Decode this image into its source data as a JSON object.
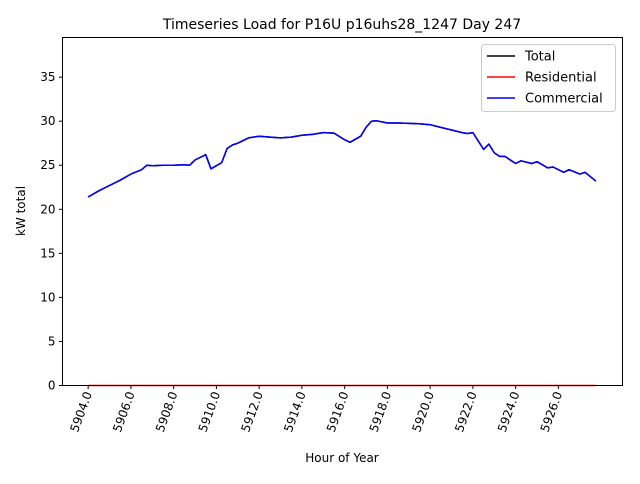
{
  "chart_data": {
    "type": "line",
    "title": "Timeseries Load for P16U p16uhs28_1247  Day 247",
    "xlabel": "Hour of Year",
    "ylabel": "kW total",
    "xlim": [
      5902.8,
      5929.0
    ],
    "ylim": [
      0,
      39.5
    ],
    "xticks": [
      5904,
      5906,
      5908,
      5910,
      5912,
      5914,
      5916,
      5918,
      5920,
      5922,
      5924,
      5926
    ],
    "xtick_labels": [
      "5904.0",
      "5906.0",
      "5908.0",
      "5910.0",
      "5912.0",
      "5914.0",
      "5916.0",
      "5918.0",
      "5920.0",
      "5922.0",
      "5924.0",
      "5926.0"
    ],
    "yticks": [
      0,
      5,
      10,
      15,
      20,
      25,
      30,
      35
    ],
    "ytick_labels": [
      "0",
      "5",
      "10",
      "15",
      "20",
      "25",
      "30",
      "35"
    ],
    "grid": false,
    "legend_position": "top-right",
    "x": [
      5904.0,
      5904.5,
      5905.0,
      5905.5,
      5906.0,
      5906.5,
      5906.75,
      5907.0,
      5907.5,
      5908.0,
      5908.5,
      5908.75,
      5909.0,
      5909.5,
      5909.75,
      5910.25,
      5910.5,
      5910.75,
      5911.0,
      5911.5,
      5912.0,
      5912.5,
      5913.0,
      5913.5,
      5914.0,
      5914.5,
      5915.0,
      5915.5,
      5916.0,
      5916.25,
      5916.75,
      5917.0,
      5917.25,
      5917.5,
      5918.0,
      5918.5,
      5919.0,
      5919.5,
      5920.0,
      5920.5,
      5921.0,
      5921.5,
      5921.75,
      5922.0,
      5922.5,
      5922.75,
      5923.0,
      5923.25,
      5923.5,
      5924.0,
      5924.25,
      5924.75,
      5925.0,
      5925.5,
      5925.75,
      5926.25,
      5926.5,
      5927.0,
      5927.25,
      5927.75
    ],
    "series": [
      {
        "name": "Total",
        "color": "#000000",
        "values": [
          21.4,
          22.1,
          22.7,
          23.3,
          24.0,
          24.5,
          25.0,
          24.95,
          25.0,
          25.0,
          25.05,
          25.0,
          25.6,
          26.2,
          24.6,
          25.3,
          26.9,
          27.3,
          27.5,
          28.1,
          28.3,
          28.2,
          28.1,
          28.2,
          28.4,
          28.5,
          28.7,
          28.65,
          27.9,
          27.6,
          28.3,
          29.3,
          30.0,
          30.05,
          29.8,
          29.8,
          29.75,
          29.7,
          29.6,
          29.3,
          29.0,
          28.7,
          28.6,
          28.7,
          26.8,
          27.4,
          26.4,
          26.0,
          26.0,
          25.2,
          25.5,
          25.2,
          25.4,
          24.7,
          24.8,
          24.2,
          24.5,
          24.0,
          24.2,
          23.2
        ]
      },
      {
        "name": "Residential",
        "color": "#ff0000",
        "values": [
          0,
          0,
          0,
          0,
          0,
          0,
          0,
          0,
          0,
          0,
          0,
          0,
          0,
          0,
          0,
          0,
          0,
          0,
          0,
          0,
          0,
          0,
          0,
          0,
          0,
          0,
          0,
          0,
          0,
          0,
          0,
          0,
          0,
          0,
          0,
          0,
          0,
          0,
          0,
          0,
          0,
          0,
          0,
          0,
          0,
          0,
          0,
          0,
          0,
          0,
          0,
          0,
          0,
          0,
          0,
          0,
          0,
          0,
          0,
          0
        ]
      },
      {
        "name": "Commercial",
        "color": "#0000ff",
        "values": [
          21.4,
          22.1,
          22.7,
          23.3,
          24.0,
          24.5,
          25.0,
          24.95,
          25.0,
          25.0,
          25.05,
          25.0,
          25.6,
          26.2,
          24.6,
          25.3,
          26.9,
          27.3,
          27.5,
          28.1,
          28.3,
          28.2,
          28.1,
          28.2,
          28.4,
          28.5,
          28.7,
          28.65,
          27.9,
          27.6,
          28.3,
          29.3,
          30.0,
          30.05,
          29.8,
          29.8,
          29.75,
          29.7,
          29.6,
          29.3,
          29.0,
          28.7,
          28.6,
          28.7,
          26.8,
          27.4,
          26.4,
          26.0,
          26.0,
          25.2,
          25.5,
          25.2,
          25.4,
          24.7,
          24.8,
          24.2,
          24.5,
          24.0,
          24.2,
          23.2
        ]
      }
    ]
  }
}
